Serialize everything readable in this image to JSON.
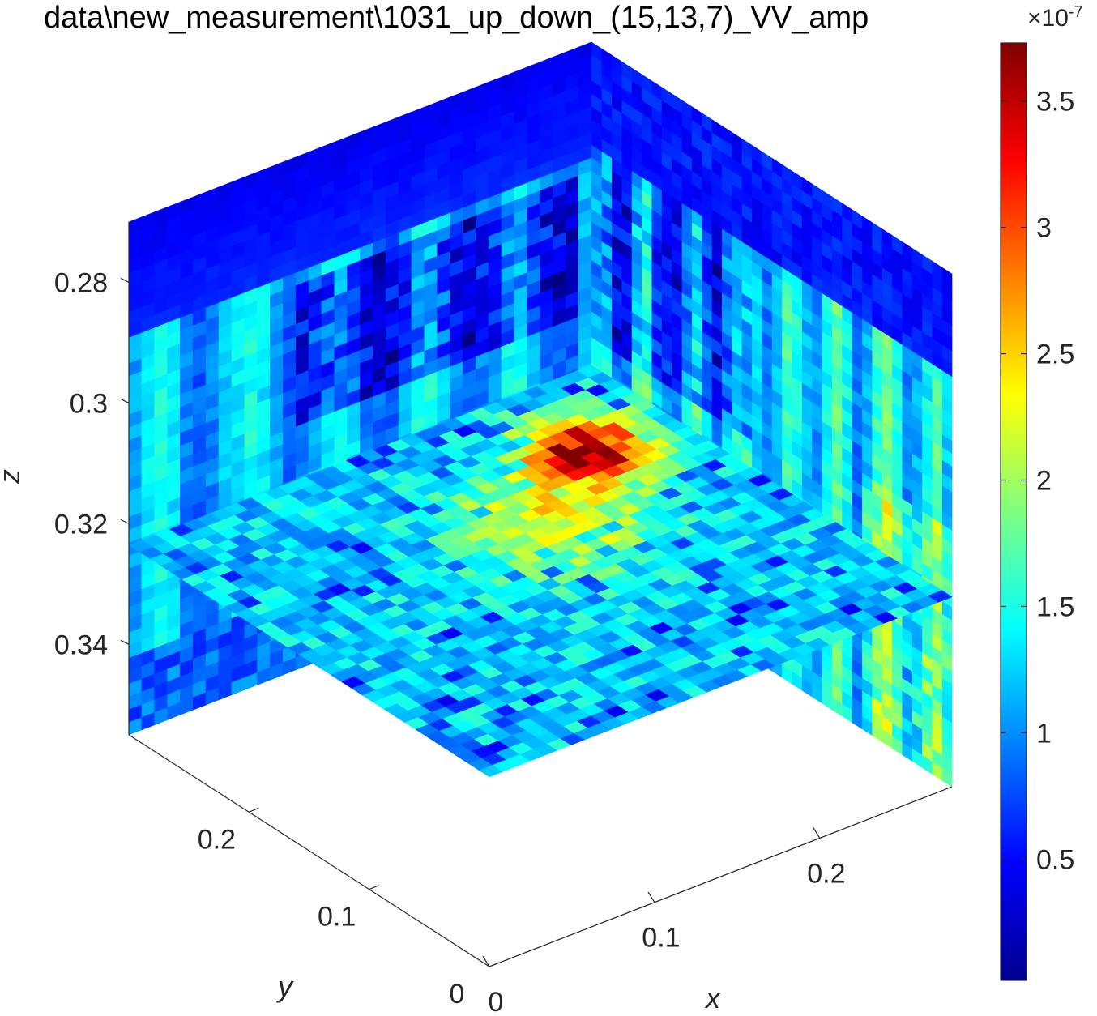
{
  "chart_data": {
    "type": "heatmap",
    "subtype": "3d-orthogonal-slices",
    "title": "data\\new_measurement\\1031_up_down_(15,13,7)_VV_amp",
    "xlabel": "x",
    "ylabel": "y",
    "zlabel": "z",
    "x_ticks": [
      "0",
      "0.1",
      "0.2"
    ],
    "y_ticks": [
      "0",
      "0.1",
      "0.2"
    ],
    "z_ticks": [
      "0.28",
      "0.3",
      "0.32",
      "0.34"
    ],
    "xlim": [
      0,
      0.28
    ],
    "ylim": [
      0,
      0.3
    ],
    "zlim": [
      0.27,
      0.355
    ],
    "z_direction": "reversed",
    "colormap": "jet",
    "colorbar": {
      "ticks": [
        "0.5",
        "1",
        "1.5",
        "2",
        "2.5",
        "3",
        "3.5"
      ],
      "range": [
        0.02,
        3.73
      ],
      "exponent_base": "×10",
      "exponent_power": "-7"
    },
    "slices": [
      {
        "plane": "y = 0",
        "description_level": "mostly 0.5–1.3 with low band near top"
      },
      {
        "plane": "x = 0",
        "description_level": "mostly 0.6–1.6"
      },
      {
        "plane": "z ≈ 0.32",
        "peak_value": 3.7,
        "peak_location": {
          "x": 0.08,
          "y": 0.06
        }
      }
    ]
  }
}
